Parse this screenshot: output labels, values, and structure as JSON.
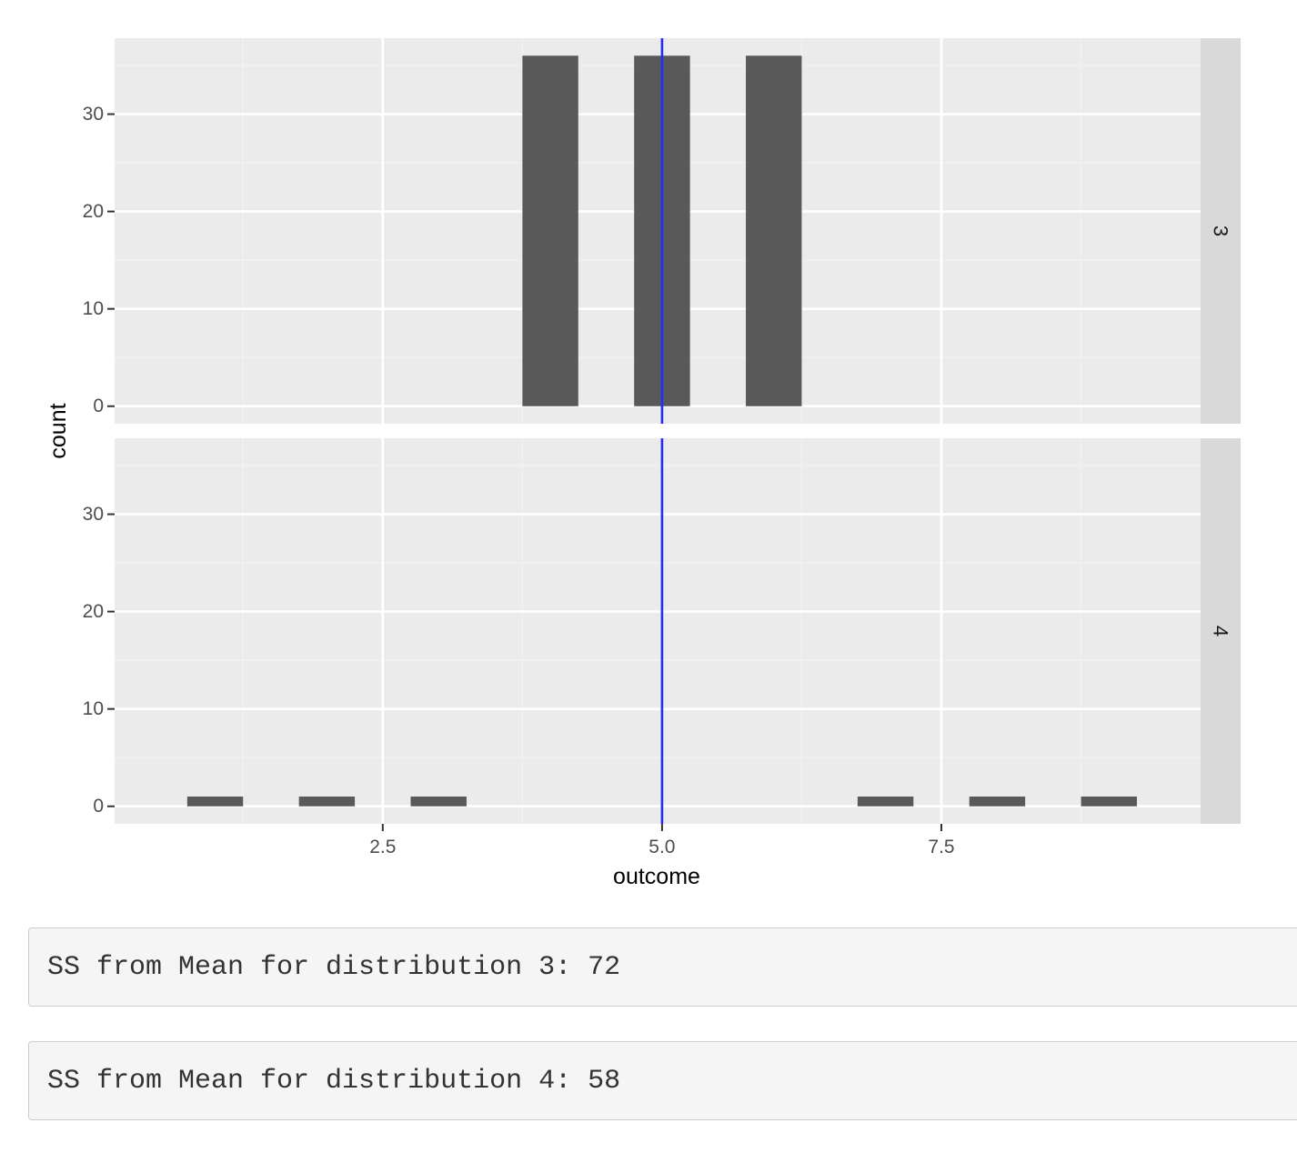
{
  "chart_data": {
    "type": "bar",
    "kind": "faceted histogram",
    "xlabel": "outcome",
    "ylabel": "count",
    "x_ticks": [
      2.5,
      5.0,
      7.5
    ],
    "x_tick_labels": [
      "2.5",
      "5.0",
      "7.5"
    ],
    "xlim": [
      0.1,
      9.82
    ],
    "y_ticks": [
      0,
      10,
      20,
      30
    ],
    "y_tick_labels": [
      "0",
      "10",
      "20",
      "30"
    ],
    "ylim": [
      -1.8,
      37.8
    ],
    "bin_width": 0.5,
    "mean_line": {
      "x": 5.0,
      "color": "#2a2aff"
    },
    "bar_color": "#595959",
    "panel_background": "#ebebeb",
    "strip_background": "#d9d9d9",
    "grid": true,
    "facets": [
      {
        "strip_label": "3",
        "bins": [
          {
            "x": 4,
            "count": 36
          },
          {
            "x": 5,
            "count": 36
          },
          {
            "x": 6,
            "count": 36
          }
        ]
      },
      {
        "strip_label": "4",
        "bins": [
          {
            "x": 1,
            "count": 1
          },
          {
            "x": 2,
            "count": 1
          },
          {
            "x": 3,
            "count": 1
          },
          {
            "x": 7,
            "count": 1
          },
          {
            "x": 8,
            "count": 1
          },
          {
            "x": 9,
            "count": 1
          }
        ]
      }
    ]
  },
  "outputs": [
    {
      "text": "SS from Mean for distribution 3: 72"
    },
    {
      "text": "SS from Mean for distribution 4: 58"
    }
  ]
}
